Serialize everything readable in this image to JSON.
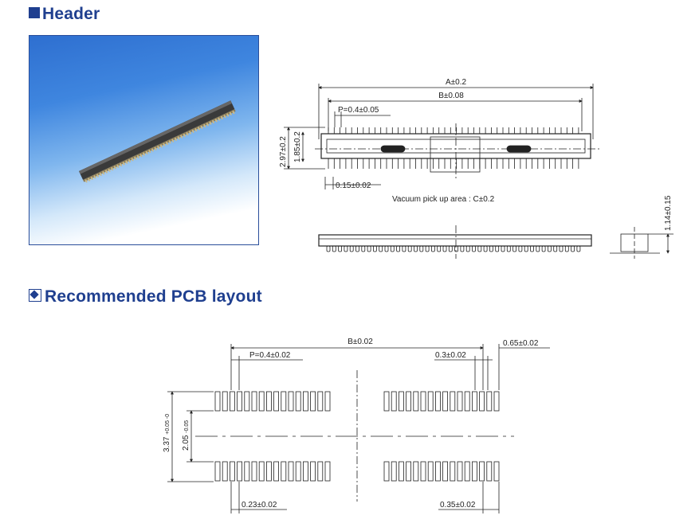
{
  "sections": {
    "header_title": "Header",
    "pcb_title": "Recommended PCB layout"
  },
  "header_drawing": {
    "dim_a": "A±0.2",
    "dim_b": "B±0.08",
    "dim_pitch": "P=0.4±0.05",
    "dim_width": "2.97±0.2",
    "dim_inner_width": "1.85±0.2",
    "dim_lead": "0.15±0.02",
    "vacuum_note": "Vacuum pick up area : C±0.2",
    "dim_height": "1.14±0.15"
  },
  "pcb_drawing": {
    "dim_b": "B±0.02",
    "dim_end": "0.65±0.02",
    "dim_pitch": "P=0.4±0.02",
    "dim_pad_space": "0.3±0.02",
    "dim_total": "3.37",
    "dim_total_tol": "+0.05 -0",
    "dim_inner": "2.05",
    "dim_inner_tol": "-0.05",
    "dim_pad_width": "0.23±0.02",
    "dim_edge": "0.35±0.02"
  },
  "colors": {
    "title": "#1f3f8f",
    "photo_border": "#2a4e9a",
    "line": "#222222"
  }
}
